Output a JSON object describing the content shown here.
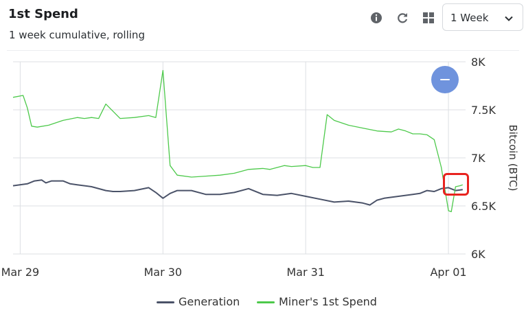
{
  "header": {
    "title": "1st Spend",
    "subtitle": "1 week cumulative, rolling",
    "range_select": {
      "value": "1 Week"
    },
    "icons": [
      "info-icon",
      "refresh-icon",
      "grid-icon",
      "chevron-down-icon"
    ]
  },
  "colors": {
    "generation": "#4a5268",
    "first_spend": "#4cc94a",
    "grid": "#dcdfe3",
    "reset_button": "#6f93dd",
    "highlight": "#e8231f"
  },
  "chart_data": {
    "type": "line",
    "title": "",
    "xlabel": "",
    "ylabel": "Bitcoin (BTC)",
    "x_tick_labels": [
      "Mar 29",
      "Mar 30",
      "Mar 31",
      "Apr 01"
    ],
    "x_range_days": [
      -0.05,
      3.12
    ],
    "y_tick_labels": [
      "6K",
      "6.5K",
      "7K",
      "7.5K",
      "8K"
    ],
    "y_ticks": [
      6000,
      6500,
      7000,
      7500,
      8000
    ],
    "ylim": [
      6000,
      8000
    ],
    "y_axis_side": "right",
    "grid": true,
    "legend_position": "bottom",
    "series": [
      {
        "name": "Generation",
        "x": [
          -0.05,
          0.05,
          0.1,
          0.15,
          0.18,
          0.22,
          0.3,
          0.35,
          0.4,
          0.5,
          0.6,
          0.65,
          0.7,
          0.8,
          0.9,
          0.95,
          1.0,
          1.05,
          1.1,
          1.2,
          1.3,
          1.4,
          1.5,
          1.6,
          1.7,
          1.8,
          1.9,
          2.0,
          2.1,
          2.2,
          2.3,
          2.4,
          2.45,
          2.5,
          2.55,
          2.6,
          2.7,
          2.75,
          2.8,
          2.85,
          2.9,
          2.95,
          3.0,
          3.05,
          3.1
        ],
        "values": [
          6710,
          6730,
          6760,
          6770,
          6740,
          6760,
          6760,
          6730,
          6720,
          6700,
          6660,
          6650,
          6650,
          6660,
          6690,
          6640,
          6580,
          6630,
          6660,
          6660,
          6620,
          6620,
          6640,
          6680,
          6620,
          6610,
          6630,
          6600,
          6570,
          6540,
          6550,
          6530,
          6510,
          6560,
          6580,
          6590,
          6610,
          6620,
          6630,
          6660,
          6650,
          6680,
          6690,
          6660,
          6670
        ]
      },
      {
        "name": "Miner's 1st Spend",
        "x": [
          -0.05,
          0.02,
          0.05,
          0.08,
          0.12,
          0.2,
          0.3,
          0.4,
          0.45,
          0.5,
          0.55,
          0.6,
          0.7,
          0.8,
          0.9,
          0.95,
          1.0,
          1.05,
          1.1,
          1.2,
          1.3,
          1.4,
          1.5,
          1.6,
          1.7,
          1.75,
          1.8,
          1.85,
          1.9,
          2.0,
          2.05,
          2.1,
          2.15,
          2.2,
          2.3,
          2.4,
          2.5,
          2.6,
          2.65,
          2.7,
          2.75,
          2.8,
          2.85,
          2.9,
          2.95,
          2.97,
          3.0,
          3.02,
          3.05,
          3.08,
          3.1
        ],
        "values": [
          7630,
          7650,
          7520,
          7330,
          7320,
          7340,
          7390,
          7420,
          7410,
          7420,
          7410,
          7560,
          7410,
          7420,
          7440,
          7420,
          7910,
          6920,
          6820,
          6800,
          6810,
          6820,
          6840,
          6880,
          6890,
          6880,
          6900,
          6920,
          6910,
          6920,
          6900,
          6900,
          7450,
          7390,
          7340,
          7310,
          7280,
          7270,
          7300,
          7280,
          7250,
          7250,
          7240,
          7190,
          6900,
          6720,
          6450,
          6440,
          6700,
          6710,
          6720
        ]
      }
    ]
  }
}
